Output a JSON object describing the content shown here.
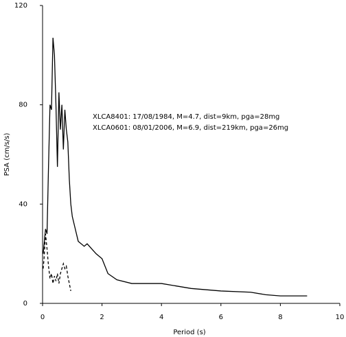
{
  "chart_data": {
    "type": "line",
    "x_label": "Period (s)",
    "y_label": "PSA (cm/s/s)",
    "xlim": [
      0,
      10
    ],
    "xticks": [
      0,
      2,
      4,
      6,
      8,
      10
    ],
    "ylim": [
      0,
      120
    ],
    "yticks": [
      0,
      40,
      80,
      120
    ],
    "grid": false,
    "series": [
      {
        "name": "XLCA8401: 17/08/1984, M=4.7, dist=9km, pga=28mg",
        "color": "#000000",
        "dash": false,
        "x": [
          0.02,
          0.1,
          0.15,
          0.2,
          0.25,
          0.3,
          0.35,
          0.4,
          0.45,
          0.5,
          0.55,
          0.6,
          0.65,
          0.7,
          0.75,
          0.8,
          0.85,
          0.9,
          0.95,
          1.0,
          1.1,
          1.2,
          1.4,
          1.5,
          1.8,
          2.0,
          2.2,
          2.5,
          3.0,
          3.5,
          4.0,
          4.5,
          5.0,
          6.0,
          7.0,
          7.5,
          8.0,
          8.9
        ],
        "values": [
          20,
          30,
          28,
          55,
          80,
          78,
          107,
          100,
          80,
          55,
          85,
          70,
          80,
          62,
          78,
          70,
          65,
          50,
          40,
          35,
          30,
          25,
          23,
          24,
          20,
          18,
          12,
          9.5,
          8,
          8,
          8,
          7,
          6,
          5,
          4.5,
          3.5,
          3,
          3
        ]
      },
      {
        "name": "XLCA0601: 08/01/2006, M=6.9, dist=219km, pga=26mg",
        "color": "#000000",
        "dash": true,
        "x": [
          0.02,
          0.05,
          0.1,
          0.15,
          0.2,
          0.25,
          0.3,
          0.35,
          0.4,
          0.45,
          0.5,
          0.55,
          0.6,
          0.65,
          0.7,
          0.75,
          0.8,
          0.85,
          0.9,
          0.95
        ],
        "values": [
          14,
          18,
          28,
          22,
          15,
          10,
          12,
          8,
          11,
          9,
          12,
          8,
          12,
          14,
          16,
          14,
          15,
          11,
          8,
          5
        ]
      }
    ]
  }
}
